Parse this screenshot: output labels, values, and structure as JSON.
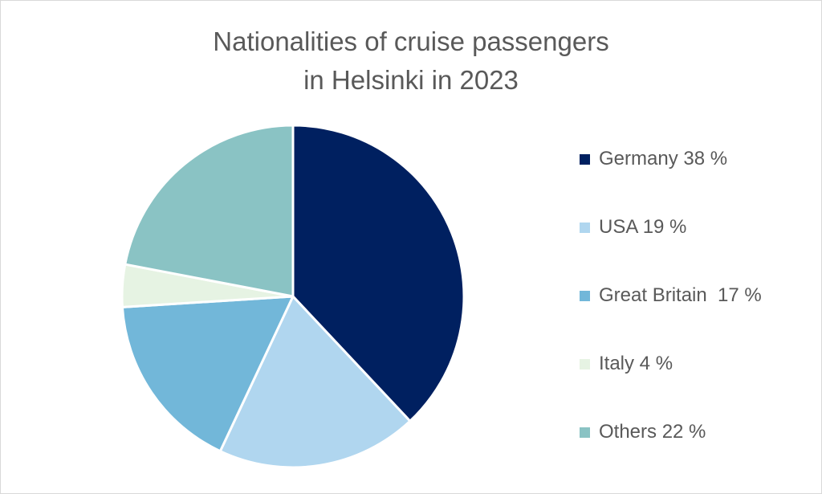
{
  "chart_data": {
    "type": "pie",
    "title": "Nationalities of cruise passengers",
    "subtitle": "in Helsinki in 2023",
    "slices": [
      {
        "label": "Germany 38 %",
        "value": 38,
        "color": "#002060"
      },
      {
        "label": "USA 19 %",
        "value": 19,
        "color": "#b0d6ef"
      },
      {
        "label": "Great Britain  17 %",
        "value": 17,
        "color": "#72b7d9"
      },
      {
        "label": "Italy 4 %",
        "value": 4,
        "color": "#e6f3e3"
      },
      {
        "label": "Others 22 %",
        "value": 22,
        "color": "#8ac3c4"
      }
    ],
    "legend_position": "right"
  }
}
